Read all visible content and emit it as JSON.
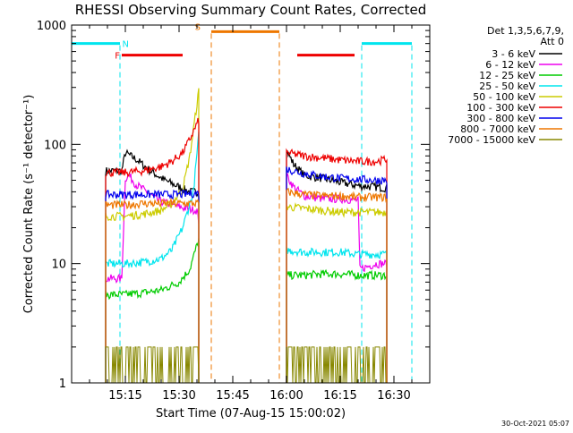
{
  "chart_data": {
    "type": "line",
    "title": "RHESSI Observing Summary Count Rates, Corrected",
    "xlabel": "Start Time (07-Aug-15 15:00:02)",
    "ylabel": "Corrected Count Rate (s⁻¹ detector⁻¹)",
    "y_scale": "log",
    "ylim": [
      1,
      1000
    ],
    "xlim_minutes_after_start": [
      0,
      100
    ],
    "x_tick_labels": [
      "15:15",
      "15:30",
      "15:45",
      "16:00",
      "16:15",
      "16:30"
    ],
    "x_tick_minutes": [
      15,
      30,
      45,
      60,
      75,
      90
    ],
    "y_tick_labels": [
      "1",
      "10",
      "100",
      "1000"
    ],
    "y_tick_values": [
      1,
      10,
      100,
      1000
    ],
    "legend_position": "right",
    "legend_header": [
      "Det 1,3,5,6,7,9,",
      "Att 0"
    ],
    "timestamp": "30-Oct-2021 05:07",
    "flags": [
      {
        "label": "N",
        "color": "#00e5ee",
        "segments": [
          [
            0,
            13.5
          ],
          [
            81,
            95
          ]
        ],
        "level": 700,
        "markers_minutes": [
          13.5,
          81,
          95
        ]
      },
      {
        "label": "F",
        "color": "#ee0000",
        "segments": [
          [
            14,
            31
          ],
          [
            63,
            79
          ]
        ],
        "level": 560,
        "markers_minutes": []
      },
      {
        "label": "S",
        "color": "#ee7700",
        "segments": [
          [
            39,
            58
          ]
        ],
        "level": 880,
        "markers_minutes": [
          39,
          58
        ]
      }
    ],
    "series": [
      {
        "name": "3 - 6 keV",
        "color": "#000000",
        "segments": [
          {
            "x": [
              9.5,
              14,
              15,
              18,
              22,
              26,
              30,
              33,
              35.5
            ],
            "y": [
              60,
              60,
              85,
              75,
              60,
              50,
              44,
              40,
              40
            ]
          },
          {
            "x": [
              60,
              62,
              65,
              70,
              75,
              80,
              85,
              88
            ],
            "y": [
              90,
              68,
              55,
              52,
              48,
              45,
              44,
              43
            ]
          }
        ]
      },
      {
        "name": "6 - 12 keV",
        "color": "#ee00ee",
        "segments": [
          {
            "x": [
              9.5,
              14,
              15,
              16,
              18,
              21,
              24,
              28,
              32,
              35,
              35.5
            ],
            "y": [
              7.5,
              7.5,
              52,
              55,
              46,
              40,
              34,
              31,
              29,
              28,
              22
            ]
          },
          {
            "x": [
              60,
              62,
              65,
              70,
              75,
              80,
              80.5,
              85,
              88
            ],
            "y": [
              55,
              44,
              37,
              35,
              35,
              34,
              9,
              10,
              10
            ]
          }
        ]
      },
      {
        "name": "12 - 25 keV",
        "color": "#00cc00",
        "segments": [
          {
            "x": [
              9.5,
              15,
              20,
              25,
              30,
              33,
              35.5
            ],
            "y": [
              5.5,
              5.5,
              5.7,
              6,
              7,
              9,
              16
            ]
          },
          {
            "x": [
              60,
              65,
              70,
              75,
              80,
              85,
              88
            ],
            "y": [
              8,
              8,
              8.2,
              8.2,
              8,
              8,
              8
            ]
          }
        ]
      },
      {
        "name": "25 - 50 keV",
        "color": "#00e5ee",
        "segments": [
          {
            "x": [
              9.5,
              15,
              20,
              25,
              28,
              31,
              34,
              35.5
            ],
            "y": [
              10,
              10,
              10.3,
              11,
              13,
              20,
              40,
              120
            ]
          },
          {
            "x": [
              60,
              65,
              70,
              75,
              80,
              85,
              88
            ],
            "y": [
              13,
              12.5,
              12.5,
              12.5,
              12,
              12,
              12
            ]
          }
        ]
      },
      {
        "name": "50 - 100 keV",
        "color": "#cccc00",
        "segments": [
          {
            "x": [
              9.5,
              15,
              20,
              25,
              28,
              31,
              33,
              35.5
            ],
            "y": [
              25,
              25,
              26,
              28,
              32,
              42,
              80,
              280
            ]
          },
          {
            "x": [
              60,
              65,
              70,
              75,
              80,
              85,
              88
            ],
            "y": [
              30,
              29,
              28,
              27,
              27,
              27,
              27
            ]
          }
        ]
      },
      {
        "name": "100 - 300 keV",
        "color": "#ee0000",
        "segments": [
          {
            "x": [
              9.5,
              15,
              20,
              25,
              28,
              31,
              33,
              35.5
            ],
            "y": [
              58,
              58,
              60,
              65,
              72,
              85,
              110,
              160
            ]
          },
          {
            "x": [
              60,
              65,
              70,
              75,
              80,
              85,
              88
            ],
            "y": [
              85,
              80,
              77,
              74,
              72,
              72,
              75
            ]
          }
        ]
      },
      {
        "name": "300 - 800 keV",
        "color": "#0000ee",
        "segments": [
          {
            "x": [
              9.5,
              15,
              20,
              25,
              30,
              35.5
            ],
            "y": [
              38,
              38,
              38,
              38,
              38,
              39
            ]
          },
          {
            "x": [
              60,
              65,
              70,
              75,
              80,
              85,
              88
            ],
            "y": [
              62,
              57,
              54,
              52,
              51,
              50,
              50
            ]
          }
        ]
      },
      {
        "name": "800 - 7000 keV",
        "color": "#ee7700",
        "segments": [
          {
            "x": [
              9.5,
              15,
              20,
              25,
              30,
              35.5
            ],
            "y": [
              31,
              31,
              32,
              32,
              32,
              32
            ]
          },
          {
            "x": [
              60,
              65,
              70,
              75,
              80,
              85,
              88
            ],
            "y": [
              40,
              38,
              37,
              37,
              36,
              36,
              36
            ]
          }
        ]
      },
      {
        "name": "7000 - 15000 keV",
        "color": "#888800",
        "segments": [
          {
            "x": [
              9.5,
              35.5
            ],
            "y": [
              1.9,
              1.9
            ]
          },
          {
            "x": [
              60,
              88
            ],
            "y": [
              1.9,
              1.9
            ]
          }
        ]
      }
    ]
  }
}
